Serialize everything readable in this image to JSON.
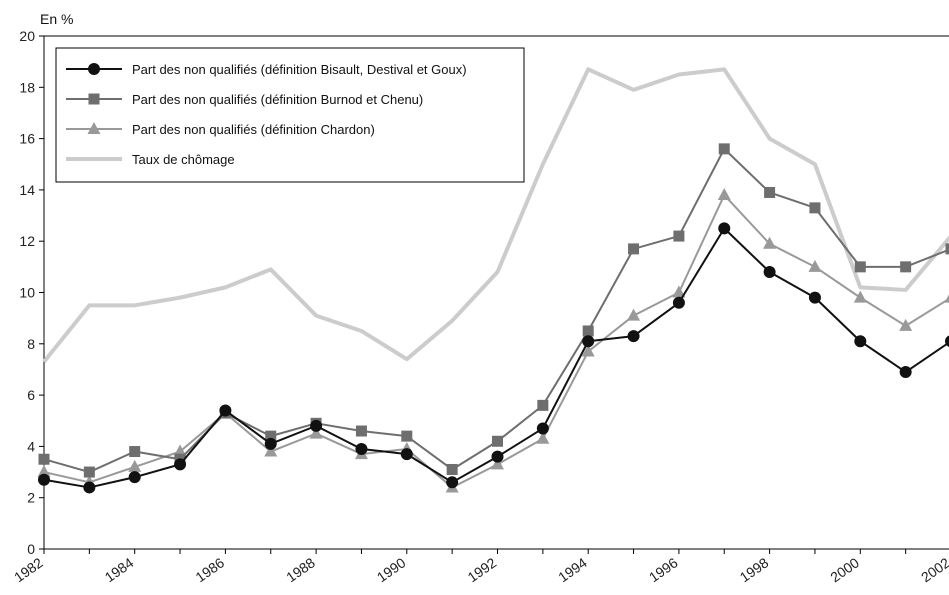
{
  "chart_data": {
    "type": "line",
    "unit_label": "En %",
    "title": "",
    "xlabel": "",
    "ylabel": "",
    "ylim": [
      0,
      20
    ],
    "xlim": [
      1982,
      2002
    ],
    "y_ticks": [
      0,
      2,
      4,
      6,
      8,
      10,
      12,
      14,
      16,
      18,
      20
    ],
    "x_ticks": [
      1982,
      1984,
      1986,
      1988,
      1990,
      1992,
      1994,
      1996,
      1998,
      2000,
      2002
    ],
    "grid": false,
    "legend_position": "top-left",
    "x": [
      1982,
      1983,
      1984,
      1985,
      1986,
      1987,
      1988,
      1989,
      1990,
      1991,
      1992,
      1993,
      1994,
      1995,
      1996,
      1997,
      1998,
      1999,
      2000,
      2001,
      2002
    ],
    "series": [
      {
        "name": "Taux de chômage",
        "color": "#cccccc",
        "marker": "none",
        "values": [
          7.3,
          9.5,
          9.5,
          9.8,
          10.2,
          10.9,
          9.1,
          8.5,
          7.4,
          8.9,
          10.8,
          15.0,
          18.7,
          17.9,
          18.5,
          18.7,
          16.0,
          15.0,
          10.2,
          10.1,
          12.2
        ]
      },
      {
        "name": "Part des non qualifiés (définition Chardon)",
        "color": "#999999",
        "marker": "triangle",
        "values": [
          3.0,
          2.6,
          3.2,
          3.8,
          5.3,
          3.8,
          4.5,
          3.7,
          3.9,
          2.4,
          3.3,
          4.3,
          7.7,
          9.1,
          10.0,
          13.8,
          11.9,
          11.0,
          9.8,
          8.7,
          9.8
        ]
      },
      {
        "name": "Part des non qualifiés (définition Burnod et Chenu)",
        "color": "#6e6e6e",
        "marker": "square",
        "values": [
          3.5,
          3.0,
          3.8,
          3.5,
          5.3,
          4.4,
          4.9,
          4.6,
          4.4,
          3.1,
          4.2,
          5.6,
          8.5,
          11.7,
          12.2,
          15.6,
          13.9,
          13.3,
          11.0,
          11.0,
          11.7
        ]
      },
      {
        "name": "Part des non qualifiés (définition Bisault, Destival et Goux)",
        "color": "#111111",
        "marker": "circle",
        "values": [
          2.7,
          2.4,
          2.8,
          3.3,
          5.4,
          4.1,
          4.8,
          3.9,
          3.7,
          2.6,
          3.6,
          4.7,
          8.1,
          8.3,
          9.6,
          12.5,
          10.8,
          9.8,
          8.1,
          6.9,
          8.1
        ]
      }
    ],
    "legend_order": [
      "Part des non qualifiés (définition Bisault, Destival et Goux)",
      "Part des non qualifiés (définition Burnod et Chenu)",
      "Part des non qualifiés (définition Chardon)",
      "Taux de chômage"
    ]
  }
}
